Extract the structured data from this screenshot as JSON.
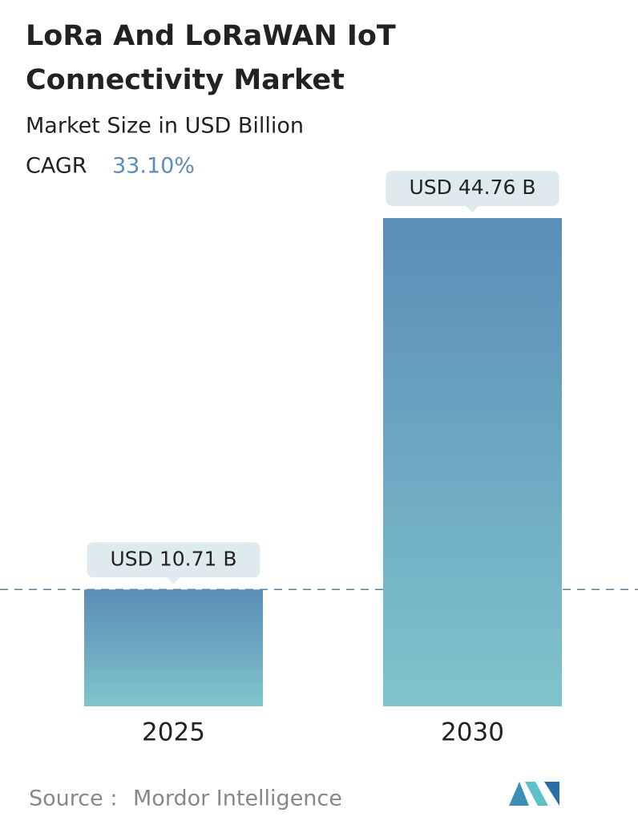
{
  "chart_data": {
    "type": "bar",
    "title_lines": [
      "LoRa And LoRaWAN IoT",
      "Connectivity Market"
    ],
    "subtitle": "Market Size in USD Billion",
    "cagr_label": "CAGR",
    "cagr": "33.10%",
    "categories": [
      "2025",
      "2030"
    ],
    "values": [
      10.71,
      44.76
    ],
    "value_labels": [
      "USD 10.71 B",
      "USD 44.76 B"
    ],
    "colors": [
      "#5b8db8",
      "#7fc4cc"
    ],
    "source_label": "Source :",
    "source": "Mordor Intelligence"
  }
}
